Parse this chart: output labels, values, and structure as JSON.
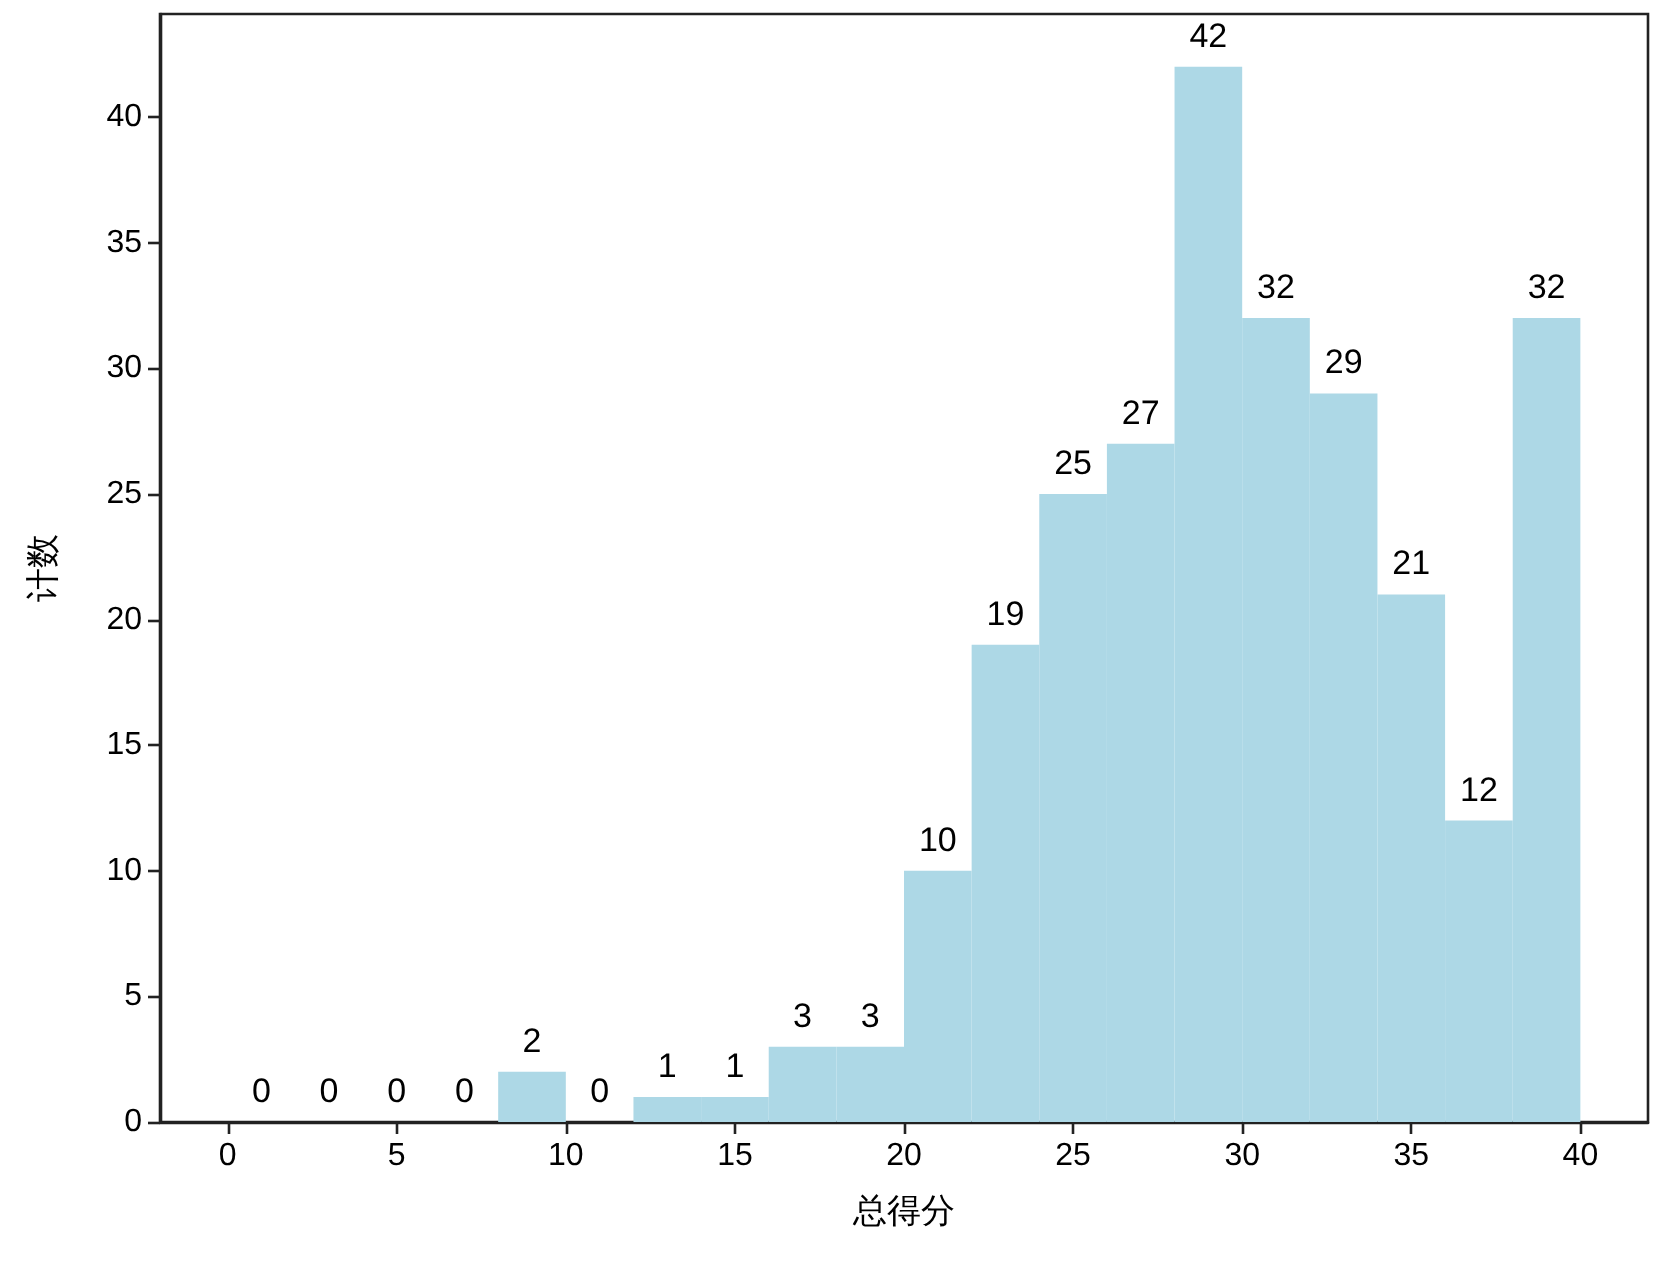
{
  "chart_data": {
    "type": "histogram",
    "xlabel": "总得分",
    "ylabel": "计数",
    "bins": [
      0,
      2,
      4,
      6,
      8,
      10,
      12,
      14,
      16,
      18,
      20,
      22,
      24,
      26,
      28,
      30,
      32,
      34,
      36,
      38,
      40
    ],
    "values": [
      0,
      0,
      0,
      0,
      2,
      0,
      1,
      1,
      3,
      3,
      10,
      19,
      25,
      27,
      42,
      32,
      29,
      21,
      12,
      32
    ],
    "color": "#add8e6",
    "data_labels": true,
    "xlim": [
      -2,
      42
    ],
    "xticks": [
      0,
      5,
      10,
      15,
      20,
      25,
      30,
      35,
      40
    ],
    "ylim": [
      0,
      44.1
    ],
    "yticks": [
      0,
      5,
      10,
      15,
      20,
      25,
      30,
      35,
      40
    ]
  }
}
